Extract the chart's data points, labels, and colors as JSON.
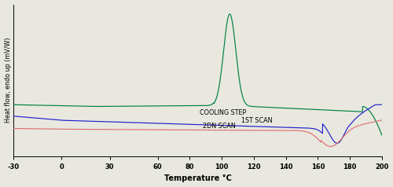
{
  "xlabel": "Temperature °C",
  "ylabel": "Heat flow, endo up (mV/W)",
  "xlim": [
    -30,
    200
  ],
  "xticks": [
    -30,
    0,
    30,
    60,
    80,
    100,
    120,
    140,
    160,
    180,
    200
  ],
  "colors": {
    "green": "#008040",
    "blue": "#2020cc",
    "red": "#e07070"
  },
  "labels": {
    "green": "COOLING STEP",
    "blue": "1ST SCAN",
    "red": "2DN SCAN"
  },
  "bg_color": "#e8e8e0",
  "figsize": [
    5.0,
    2.38
  ],
  "dpi": 100
}
